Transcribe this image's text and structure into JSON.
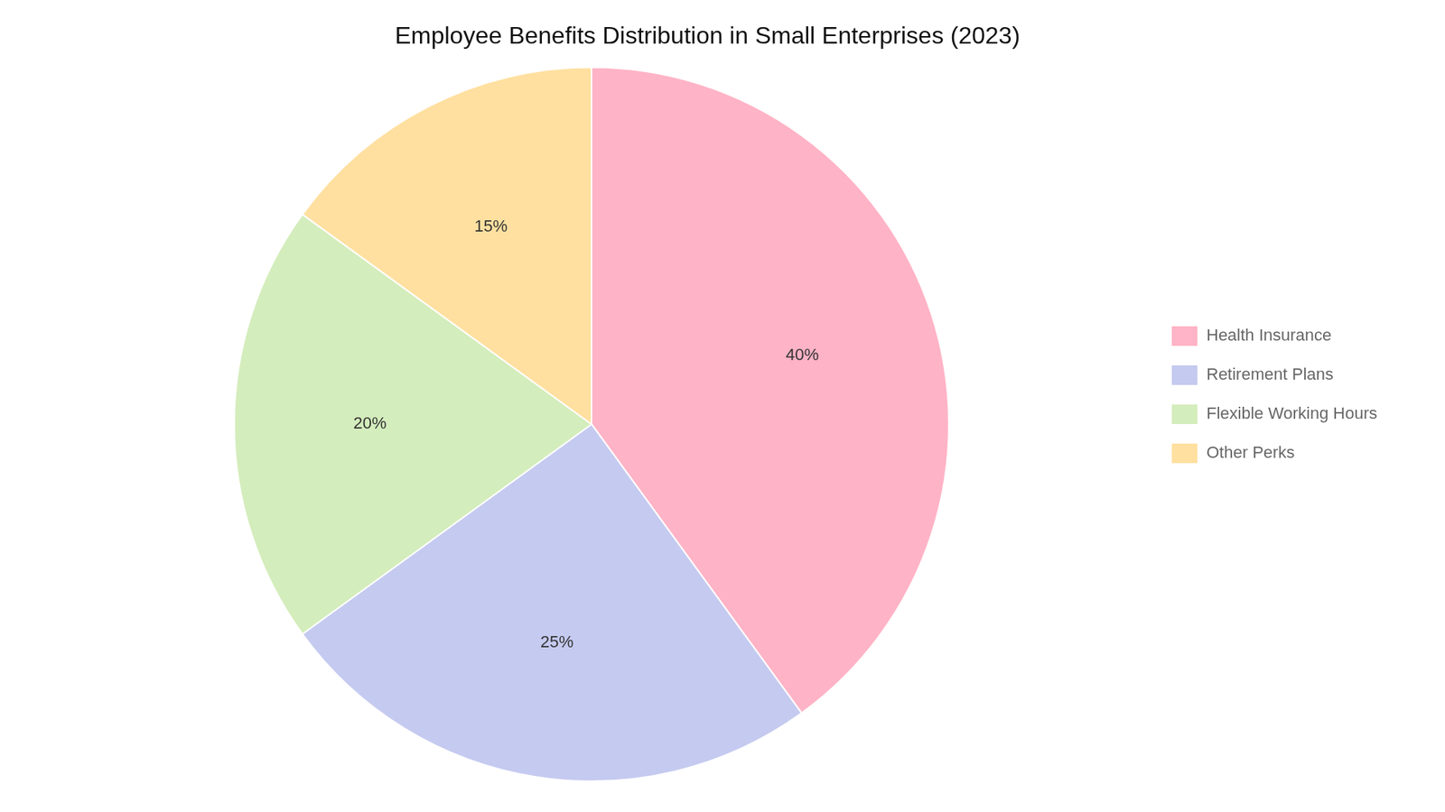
{
  "chart_data": {
    "type": "pie",
    "title": "Employee Benefits Distribution in Small Enterprises (2023)",
    "categories": [
      "Health Insurance",
      "Retirement Plans",
      "Flexible Working Hours",
      "Other Perks"
    ],
    "values": [
      40,
      25,
      20,
      15
    ],
    "value_labels": [
      "40%",
      "25%",
      "20%",
      "15%"
    ],
    "colors": [
      "#FFB3C6",
      "#C5CAF0",
      "#D4EDBC",
      "#FFE0A0"
    ],
    "data_labels": true,
    "legend": "right"
  }
}
